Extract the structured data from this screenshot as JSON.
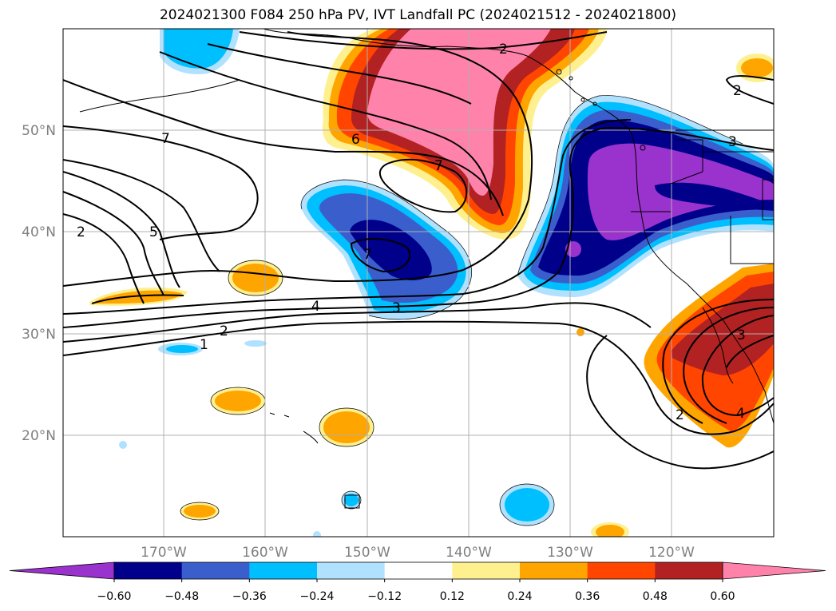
{
  "title": "2024021300 F084 250 hPa PV, IVT Landfall PC (2024021512 - 2024021800)",
  "map": {
    "lat_labels": [
      "50°N",
      "40°N",
      "30°N",
      "20°N"
    ],
    "lon_labels": [
      "170°W",
      "160°W",
      "150°W",
      "140°W",
      "130°W",
      "120°W"
    ],
    "contour_labels": [
      "2",
      "7",
      "6",
      "7",
      "2",
      "5",
      "7",
      "4",
      "3",
      "2",
      "1",
      "2",
      "2",
      "3",
      "4",
      "3"
    ]
  },
  "colorbar": {
    "tick_labels": [
      "−0.60",
      "−0.48",
      "−0.36",
      "−0.24",
      "−0.12",
      "0.12",
      "0.24",
      "0.36",
      "0.48",
      "0.60"
    ],
    "colors": [
      "#9a32cd",
      "#00008b",
      "#3a5fcd",
      "#00bfff",
      "#b0e2ff",
      "#ffffff",
      "#fff08f",
      "#ffa500",
      "#ff4500",
      "#b22222",
      "#ff82ab"
    ]
  }
}
